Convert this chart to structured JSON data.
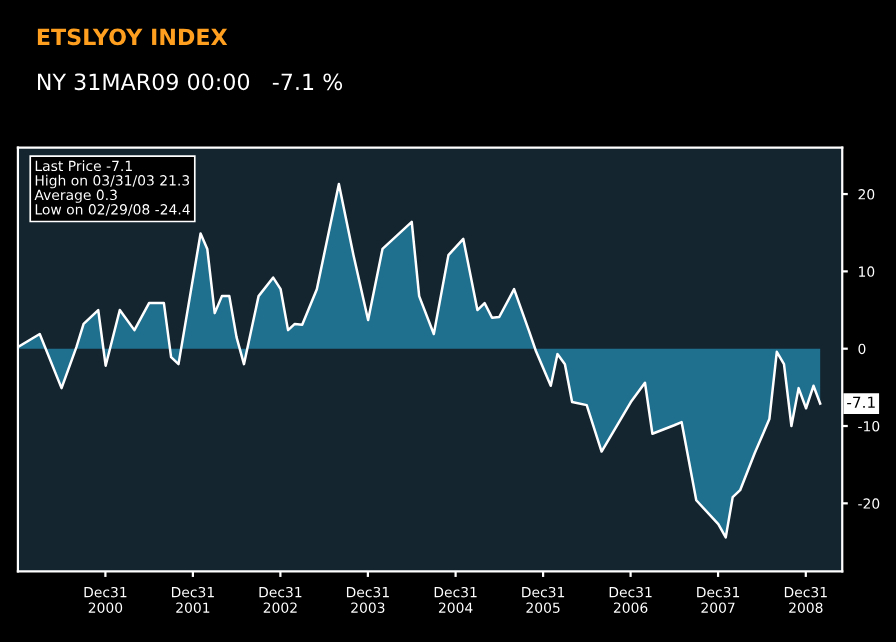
{
  "chart_data": {
    "type": "area",
    "title": "ETSLYOY INDEX",
    "subtitle": "NY 31MAR09 00:00   -7.1 %",
    "x": [
      "2000-01",
      "2000-04",
      "2000-07",
      "2000-09",
      "2000-10",
      "2000-12",
      "2001-01",
      "2001-03",
      "2001-05",
      "2001-07",
      "2001-09",
      "2001-10",
      "2001-11",
      "2002-02",
      "2002-03",
      "2002-04",
      "2002-05",
      "2002-06",
      "2002-07",
      "2002-08",
      "2002-10",
      "2002-12",
      "2003-01",
      "2003-02",
      "2003-03",
      "2003-04",
      "2003-06",
      "2003-09",
      "2003-11",
      "2004-01",
      "2004-03",
      "2004-07",
      "2004-08",
      "2004-10",
      "2004-12",
      "2005-02",
      "2005-04",
      "2005-05",
      "2005-06",
      "2005-07",
      "2005-09",
      "2005-11",
      "2005-12",
      "2006-02",
      "2006-03",
      "2006-04",
      "2006-05",
      "2006-07",
      "2006-09",
      "2006-11",
      "2007-01",
      "2007-03",
      "2007-04",
      "2007-07",
      "2007-08",
      "2007-10",
      "2008-01",
      "2008-02",
      "2008-03",
      "2008-04",
      "2008-06",
      "2008-08",
      "2008-09",
      "2008-10",
      "2008-11",
      "2008-12",
      "2009-01",
      "2009-02",
      "2009-03"
    ],
    "series": [
      {
        "color": "#1f6f8f",
        "values": [
          0.2,
          1.9,
          -5.1,
          0.2,
          3.2,
          5.0,
          -2.2,
          5.0,
          2.4,
          5.9,
          5.9,
          -1.1,
          -2.0,
          14.9,
          12.9,
          4.6,
          6.8,
          6.8,
          1.5,
          -2.0,
          6.8,
          9.2,
          7.7,
          2.4,
          3.2,
          3.1,
          7.7,
          21.3,
          12.1,
          3.7,
          12.9,
          16.4,
          6.8,
          1.9,
          12.1,
          14.2,
          5.0,
          5.9,
          4.0,
          4.1,
          7.7,
          2.4,
          -0.3,
          -4.8,
          -0.7,
          -2.0,
          -6.9,
          -7.3,
          -13.3,
          -10.1,
          -6.9,
          -4.4,
          -11.0,
          -9.9,
          -9.5,
          -19.6,
          -22.7,
          -24.4,
          -19.2,
          -18.3,
          -13.5,
          -9.1,
          -0.4,
          -2.0,
          -10.0,
          -5.1,
          -7.7,
          -4.8,
          -7.1
        ]
      }
    ],
    "xlim": [
      "2000-01",
      "2009-06"
    ],
    "xticks": [
      {
        "value": "2000-12-31",
        "label": "Dec31\n2000"
      },
      {
        "value": "2001-12-31",
        "label": "Dec31\n2001"
      },
      {
        "value": "2002-12-31",
        "label": "Dec31\n2002"
      },
      {
        "value": "2003-12-31",
        "label": "Dec31\n2003"
      },
      {
        "value": "2004-12-31",
        "label": "Dec31\n2004"
      },
      {
        "value": "2005-12-31",
        "label": "Dec31\n2005"
      },
      {
        "value": "2006-12-31",
        "label": "Dec31\n2006"
      },
      {
        "value": "2007-12-31",
        "label": "Dec31\n2007"
      },
      {
        "value": "2008-12-31",
        "label": "Dec31\n2008"
      }
    ],
    "ylim": [
      -28.8,
      26
    ],
    "yticks": [
      -20,
      -10,
      0,
      10,
      20
    ],
    "annotations": [
      "Last Price -7.1",
      "High on 03/31/03 21.3",
      "Average 0.3",
      "Low on 02/29/08 -24.4",
      {
        "text": "-7.1",
        "x": "2009-03",
        "y": -7.1
      }
    ],
    "grid": false,
    "legend": false
  }
}
